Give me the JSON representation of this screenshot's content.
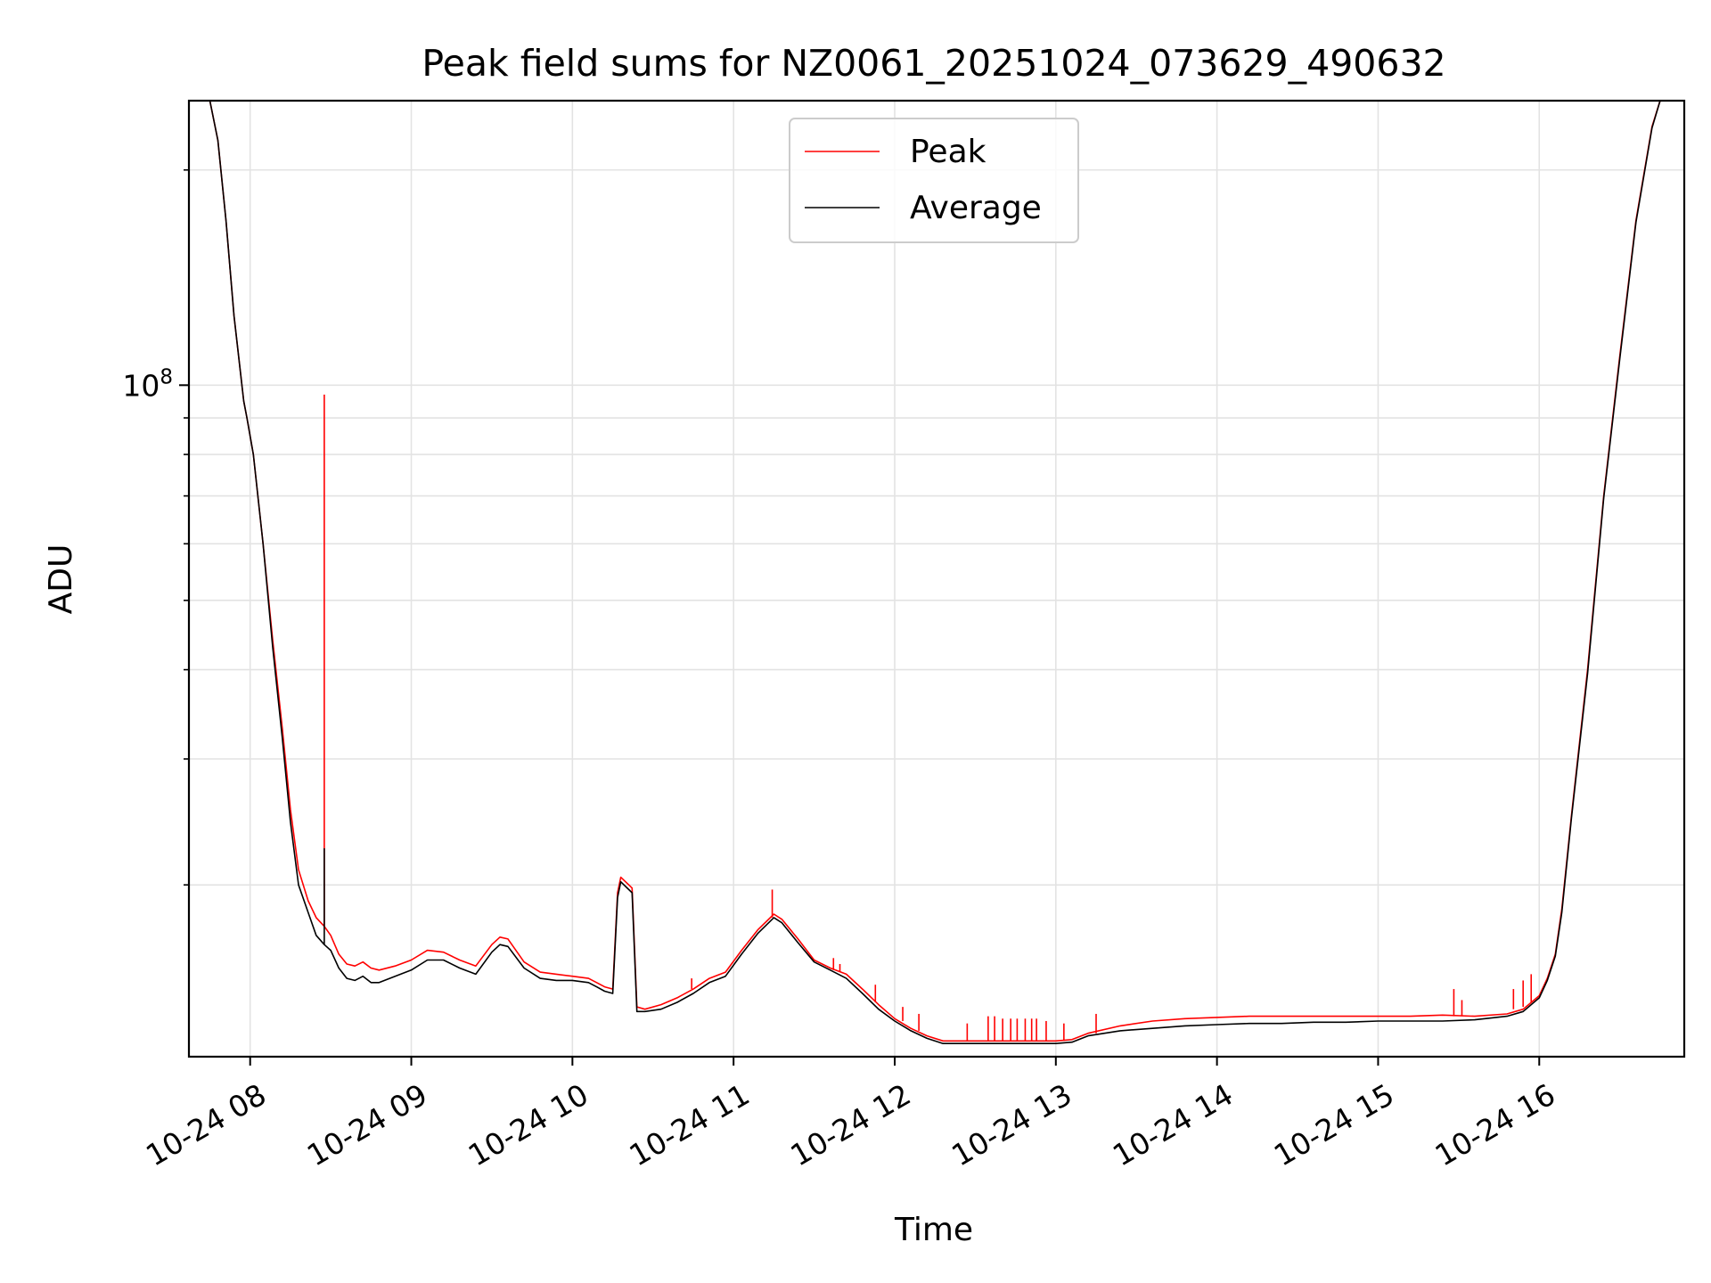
{
  "chart_data": {
    "type": "line",
    "title": "Peak field sums for NZ0061_20251024_073629_490632",
    "xlabel": "Time",
    "ylabel": "ADU",
    "yscale": "log",
    "ylim": [
      11500000,
      250000000
    ],
    "xlim": [
      7.62,
      16.9
    ],
    "x_ticks": [
      {
        "value": 8,
        "label": "10-24 08"
      },
      {
        "value": 9,
        "label": "10-24 09"
      },
      {
        "value": 10,
        "label": "10-24 10"
      },
      {
        "value": 11,
        "label": "10-24 11"
      },
      {
        "value": 12,
        "label": "10-24 12"
      },
      {
        "value": 13,
        "label": "10-24 13"
      },
      {
        "value": 14,
        "label": "10-24 14"
      },
      {
        "value": 15,
        "label": "10-24 15"
      },
      {
        "value": 16,
        "label": "10-24 16"
      }
    ],
    "y_major_ticks": [
      {
        "value": 100000000,
        "base": "10",
        "exp": "8"
      }
    ],
    "y_minor_ticks": [
      20000000,
      30000000,
      40000000,
      50000000,
      60000000,
      70000000,
      80000000,
      90000000,
      200000000
    ],
    "grid": true,
    "legend": {
      "position": "top-center",
      "entries": [
        {
          "name": "Peak",
          "color": "#ff0000"
        },
        {
          "name": "Average",
          "color": "#000000"
        }
      ]
    },
    "series": [
      {
        "name": "Peak",
        "color": "#ff0000",
        "x": [
          7.62,
          7.75,
          7.8,
          7.85,
          7.9,
          7.96,
          7.98,
          8.02,
          8.08,
          8.14,
          8.2,
          8.25,
          8.3,
          8.36,
          8.41,
          8.46,
          8.5,
          8.55,
          8.6,
          8.65,
          8.7,
          8.75,
          8.8,
          8.9,
          9.0,
          9.1,
          9.2,
          9.3,
          9.4,
          9.5,
          9.55,
          9.6,
          9.7,
          9.8,
          9.9,
          10.0,
          10.1,
          10.15,
          10.2,
          10.25,
          10.28,
          10.3,
          10.37,
          10.4,
          10.45,
          10.55,
          10.65,
          10.75,
          10.85,
          10.95,
          11.05,
          11.15,
          11.25,
          11.3,
          11.4,
          11.5,
          11.6,
          11.7,
          11.8,
          11.9,
          12.0,
          12.1,
          12.2,
          12.3,
          12.5,
          12.7,
          12.9,
          13.0,
          13.1,
          13.2,
          13.4,
          13.6,
          13.8,
          14.0,
          14.2,
          14.4,
          14.6,
          14.8,
          15.0,
          15.2,
          15.4,
          15.6,
          15.8,
          15.9,
          16.0,
          16.05,
          16.1,
          16.14,
          16.2,
          16.3,
          16.4,
          16.5,
          16.6,
          16.7,
          16.75,
          16.8,
          16.9
        ],
        "y": [
          250000000,
          250000000,
          220000000,
          170000000,
          125000000,
          95000000,
          90000000,
          80000000,
          60000000,
          44000000,
          33000000,
          25500000,
          21000000,
          19000000,
          18000000,
          17500000,
          17000000,
          16000000,
          15500000,
          15400000,
          15600000,
          15300000,
          15200000,
          15400000,
          15700000,
          16200000,
          16100000,
          15700000,
          15400000,
          16500000,
          16900000,
          16800000,
          15600000,
          15100000,
          15000000,
          14900000,
          14800000,
          14600000,
          14400000,
          14300000,
          19500000,
          20500000,
          19800000,
          13500000,
          13400000,
          13600000,
          13900000,
          14300000,
          14800000,
          15100000,
          16200000,
          17300000,
          18200000,
          17900000,
          16800000,
          15700000,
          15300000,
          15000000,
          14300000,
          13600000,
          13000000,
          12600000,
          12300000,
          12100000,
          12100000,
          12100000,
          12100000,
          12100000,
          12150000,
          12400000,
          12700000,
          12900000,
          13000000,
          13050000,
          13100000,
          13100000,
          13100000,
          13100000,
          13100000,
          13100000,
          13150000,
          13100000,
          13200000,
          13400000,
          14000000,
          14800000,
          16000000,
          18500000,
          25000000,
          40000000,
          70000000,
          110000000,
          170000000,
          230000000,
          250000000,
          250000000,
          250000000
        ]
      },
      {
        "name": "Average",
        "color": "#000000",
        "x": [
          7.62,
          7.75,
          7.8,
          7.85,
          7.9,
          7.96,
          7.98,
          8.02,
          8.08,
          8.14,
          8.2,
          8.25,
          8.3,
          8.36,
          8.41,
          8.46,
          8.5,
          8.55,
          8.6,
          8.65,
          8.7,
          8.75,
          8.8,
          8.9,
          9.0,
          9.1,
          9.2,
          9.3,
          9.4,
          9.5,
          9.55,
          9.6,
          9.7,
          9.8,
          9.9,
          10.0,
          10.1,
          10.15,
          10.2,
          10.25,
          10.28,
          10.3,
          10.37,
          10.4,
          10.45,
          10.55,
          10.65,
          10.75,
          10.85,
          10.95,
          11.05,
          11.15,
          11.25,
          11.3,
          11.4,
          11.5,
          11.6,
          11.7,
          11.8,
          11.9,
          12.0,
          12.1,
          12.2,
          12.3,
          12.5,
          12.7,
          12.9,
          13.0,
          13.1,
          13.2,
          13.4,
          13.6,
          13.8,
          14.0,
          14.2,
          14.4,
          14.6,
          14.8,
          15.0,
          15.2,
          15.4,
          15.6,
          15.8,
          15.9,
          16.0,
          16.05,
          16.1,
          16.14,
          16.2,
          16.3,
          16.4,
          16.5,
          16.6,
          16.7,
          16.75,
          16.8,
          16.9
        ],
        "y": [
          250000000,
          250000000,
          220000000,
          170000000,
          125000000,
          95000000,
          90000000,
          80000000,
          60000000,
          43000000,
          32000000,
          24500000,
          20000000,
          18300000,
          17000000,
          16500000,
          16200000,
          15300000,
          14800000,
          14700000,
          14900000,
          14600000,
          14600000,
          14900000,
          15200000,
          15700000,
          15700000,
          15300000,
          15000000,
          16100000,
          16500000,
          16400000,
          15300000,
          14800000,
          14700000,
          14700000,
          14600000,
          14400000,
          14200000,
          14100000,
          19200000,
          20200000,
          19500000,
          13300000,
          13300000,
          13400000,
          13700000,
          14100000,
          14600000,
          14900000,
          16000000,
          17100000,
          18000000,
          17700000,
          16600000,
          15600000,
          15200000,
          14800000,
          14100000,
          13400000,
          12900000,
          12500000,
          12200000,
          12000000,
          12000000,
          12000000,
          12000000,
          12000000,
          12050000,
          12300000,
          12500000,
          12600000,
          12700000,
          12750000,
          12800000,
          12800000,
          12850000,
          12850000,
          12900000,
          12900000,
          12900000,
          12950000,
          13100000,
          13300000,
          13900000,
          14700000,
          15900000,
          18300000,
          24800000,
          39500000,
          69500000,
          109000000,
          169000000,
          229000000,
          250000000,
          250000000,
          250000000
        ]
      }
    ],
    "spikes": [
      {
        "series": "Peak",
        "x": 8.46,
        "from": 17500000,
        "to": 97000000
      },
      {
        "series": "Average",
        "x": 8.46,
        "from": 16500000,
        "to": 22500000
      },
      {
        "series": "Peak",
        "x": 11.24,
        "from": 18000000,
        "to": 19700000
      },
      {
        "series": "Peak",
        "x": 11.62,
        "from": 15200000,
        "to": 15800000
      },
      {
        "series": "Peak",
        "x": 11.66,
        "from": 15100000,
        "to": 15500000
      },
      {
        "series": "Peak",
        "x": 10.74,
        "from": 14300000,
        "to": 14800000
      },
      {
        "series": "Peak",
        "x": 11.88,
        "from": 13700000,
        "to": 14500000
      },
      {
        "series": "Peak",
        "x": 12.05,
        "from": 12900000,
        "to": 13500000
      },
      {
        "series": "Peak",
        "x": 12.15,
        "from": 12500000,
        "to": 13200000
      },
      {
        "series": "Peak",
        "x": 12.45,
        "from": 12100000,
        "to": 12800000
      },
      {
        "series": "Peak",
        "x": 12.58,
        "from": 12100000,
        "to": 13100000
      },
      {
        "series": "Peak",
        "x": 12.62,
        "from": 12100000,
        "to": 13100000
      },
      {
        "series": "Peak",
        "x": 12.67,
        "from": 12100000,
        "to": 13000000
      },
      {
        "series": "Peak",
        "x": 12.72,
        "from": 12100000,
        "to": 13000000
      },
      {
        "series": "Peak",
        "x": 12.76,
        "from": 12100000,
        "to": 13000000
      },
      {
        "series": "Peak",
        "x": 12.81,
        "from": 12100000,
        "to": 13000000
      },
      {
        "series": "Peak",
        "x": 12.85,
        "from": 12100000,
        "to": 13000000
      },
      {
        "series": "Peak",
        "x": 12.88,
        "from": 12100000,
        "to": 13000000
      },
      {
        "series": "Peak",
        "x": 12.94,
        "from": 12100000,
        "to": 12900000
      },
      {
        "series": "Peak",
        "x": 13.05,
        "from": 12100000,
        "to": 12800000
      },
      {
        "series": "Peak",
        "x": 13.25,
        "from": 12400000,
        "to": 13200000
      },
      {
        "series": "Peak",
        "x": 15.47,
        "from": 13100000,
        "to": 14300000
      },
      {
        "series": "Peak",
        "x": 15.52,
        "from": 13100000,
        "to": 13800000
      },
      {
        "series": "Peak",
        "x": 15.84,
        "from": 13400000,
        "to": 14300000
      },
      {
        "series": "Peak",
        "x": 15.9,
        "from": 13500000,
        "to": 14700000
      },
      {
        "series": "Peak",
        "x": 15.95,
        "from": 13700000,
        "to": 15000000
      }
    ]
  }
}
